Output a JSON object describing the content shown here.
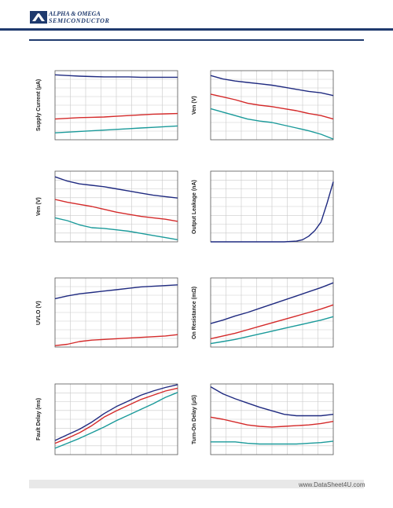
{
  "header": {
    "company_line1": "ALPHA & OMEGA",
    "company_line2": "SEMICONDUCTOR",
    "brand_color": "#1f3a6e"
  },
  "footer": {
    "watermark": "www.DataSheet4U.com"
  },
  "series_colors": [
    "#1f2a80",
    "#d42a2a",
    "#1a9a9a"
  ],
  "chart_data": [
    {
      "id": "supply-current",
      "type": "line",
      "ylabel": "Supply Current (µA)",
      "xlim": [
        0,
        10
      ],
      "ylim": [
        0,
        10
      ],
      "grid": true,
      "x": [
        0,
        1,
        2,
        3,
        4,
        5,
        6,
        7,
        8,
        9,
        10
      ],
      "series": [
        {
          "values": [
            9.4,
            9.3,
            9.2,
            9.15,
            9.1,
            9.1,
            9.1,
            9.05,
            9.05,
            9.05,
            9.05
          ]
        },
        {
          "values": [
            3.0,
            3.1,
            3.2,
            3.25,
            3.3,
            3.4,
            3.5,
            3.6,
            3.7,
            3.75,
            3.8
          ]
        },
        {
          "values": [
            1.0,
            1.1,
            1.2,
            1.3,
            1.4,
            1.5,
            1.6,
            1.7,
            1.8,
            1.9,
            2.0
          ]
        }
      ]
    },
    {
      "id": "ven-1",
      "type": "line",
      "ylabel": "Ven (V)",
      "xlim": [
        0,
        10
      ],
      "ylim": [
        0,
        10
      ],
      "grid": true,
      "x": [
        0,
        1,
        2,
        3,
        4,
        5,
        6,
        7,
        8,
        9,
        10
      ],
      "series": [
        {
          "values": [
            9.3,
            8.8,
            8.5,
            8.3,
            8.1,
            7.9,
            7.6,
            7.3,
            7.0,
            6.8,
            6.4
          ]
        },
        {
          "values": [
            6.6,
            6.2,
            5.8,
            5.3,
            5.0,
            4.8,
            4.5,
            4.2,
            3.8,
            3.5,
            3.0
          ]
        },
        {
          "values": [
            4.5,
            4.0,
            3.5,
            3.0,
            2.7,
            2.5,
            2.1,
            1.7,
            1.3,
            0.8,
            0.1
          ]
        }
      ]
    },
    {
      "id": "ven-2",
      "type": "line",
      "ylabel": "Ven (V)",
      "xlim": [
        0,
        10
      ],
      "ylim": [
        0,
        10
      ],
      "grid": true,
      "x": [
        0,
        1,
        2,
        3,
        4,
        5,
        6,
        7,
        8,
        9,
        10
      ],
      "series": [
        {
          "values": [
            9.2,
            8.6,
            8.2,
            8.0,
            7.8,
            7.5,
            7.2,
            6.9,
            6.6,
            6.4,
            6.2
          ]
        },
        {
          "values": [
            6.0,
            5.6,
            5.3,
            5.0,
            4.6,
            4.2,
            3.9,
            3.6,
            3.4,
            3.2,
            2.9
          ]
        },
        {
          "values": [
            3.4,
            3.0,
            2.4,
            2.0,
            1.9,
            1.7,
            1.5,
            1.2,
            0.9,
            0.6,
            0.3
          ]
        }
      ]
    },
    {
      "id": "output-leakage",
      "type": "line",
      "ylabel": "Output Leakage (nA)",
      "xlim": [
        0,
        10
      ],
      "ylim": [
        0,
        10
      ],
      "grid": true,
      "x": [
        0,
        1,
        2,
        3,
        4,
        5,
        6,
        7,
        7.5,
        8,
        8.5,
        9,
        9.5,
        10
      ],
      "series": [
        {
          "values": [
            0,
            0,
            0,
            0,
            0,
            0,
            0,
            0.1,
            0.3,
            0.8,
            1.6,
            2.8,
            5.5,
            8.5
          ]
        }
      ]
    },
    {
      "id": "uvlo",
      "type": "line",
      "ylabel": "UVLO (V)",
      "xlim": [
        0,
        10
      ],
      "ylim": [
        0,
        10
      ],
      "grid": true,
      "x": [
        0,
        1,
        2,
        3,
        4,
        5,
        6,
        7,
        8,
        9,
        10
      ],
      "series": [
        {
          "values": [
            7.0,
            7.4,
            7.7,
            7.9,
            8.1,
            8.3,
            8.5,
            8.7,
            8.8,
            8.9,
            9.0
          ]
        },
        {
          "values": [
            0.2,
            0.4,
            0.8,
            1.0,
            1.1,
            1.2,
            1.3,
            1.4,
            1.5,
            1.6,
            1.8
          ]
        }
      ]
    },
    {
      "id": "on-resistance",
      "type": "line",
      "ylabel": "On Resistance (mΩ)",
      "xlim": [
        0,
        10
      ],
      "ylim": [
        0,
        10
      ],
      "grid": true,
      "x": [
        0,
        1,
        2,
        3,
        4,
        5,
        6,
        7,
        8,
        9,
        10
      ],
      "series": [
        {
          "values": [
            3.4,
            3.9,
            4.5,
            5.0,
            5.6,
            6.2,
            6.8,
            7.4,
            8.0,
            8.6,
            9.3
          ]
        },
        {
          "values": [
            1.2,
            1.6,
            2.0,
            2.5,
            3.0,
            3.5,
            4.0,
            4.5,
            5.0,
            5.5,
            6.1
          ]
        },
        {
          "values": [
            0.5,
            0.8,
            1.1,
            1.5,
            1.9,
            2.3,
            2.7,
            3.1,
            3.5,
            3.9,
            4.4
          ]
        }
      ]
    },
    {
      "id": "fault-delay",
      "type": "line",
      "ylabel": "Fault Delay (ms)",
      "xlim": [
        0,
        10
      ],
      "ylim": [
        0,
        10
      ],
      "grid": true,
      "x": [
        0,
        1,
        2,
        3,
        4,
        5,
        6,
        7,
        8,
        9,
        10
      ],
      "series": [
        {
          "values": [
            2.0,
            2.8,
            3.6,
            4.6,
            5.8,
            6.8,
            7.6,
            8.4,
            9.0,
            9.5,
            9.9
          ]
        },
        {
          "values": [
            1.6,
            2.3,
            3.1,
            4.1,
            5.3,
            6.2,
            7.0,
            7.8,
            8.4,
            9.0,
            9.4
          ]
        },
        {
          "values": [
            0.9,
            1.6,
            2.3,
            3.1,
            3.9,
            4.8,
            5.6,
            6.4,
            7.2,
            8.1,
            8.8
          ]
        }
      ]
    },
    {
      "id": "turn-on-delay",
      "type": "line",
      "ylabel": "Turn-On Delay (µS)",
      "xlim": [
        0,
        10
      ],
      "ylim": [
        0,
        10
      ],
      "grid": true,
      "x": [
        0,
        1,
        2,
        3,
        4,
        5,
        6,
        7,
        8,
        9,
        10
      ],
      "series": [
        {
          "values": [
            9.6,
            8.6,
            7.9,
            7.3,
            6.7,
            6.2,
            5.7,
            5.5,
            5.5,
            5.5,
            5.7
          ]
        },
        {
          "values": [
            5.3,
            5.0,
            4.6,
            4.2,
            4.0,
            3.9,
            4.0,
            4.1,
            4.2,
            4.4,
            4.7
          ]
        },
        {
          "values": [
            1.8,
            1.8,
            1.8,
            1.6,
            1.5,
            1.5,
            1.5,
            1.5,
            1.6,
            1.7,
            1.9
          ]
        }
      ]
    }
  ]
}
